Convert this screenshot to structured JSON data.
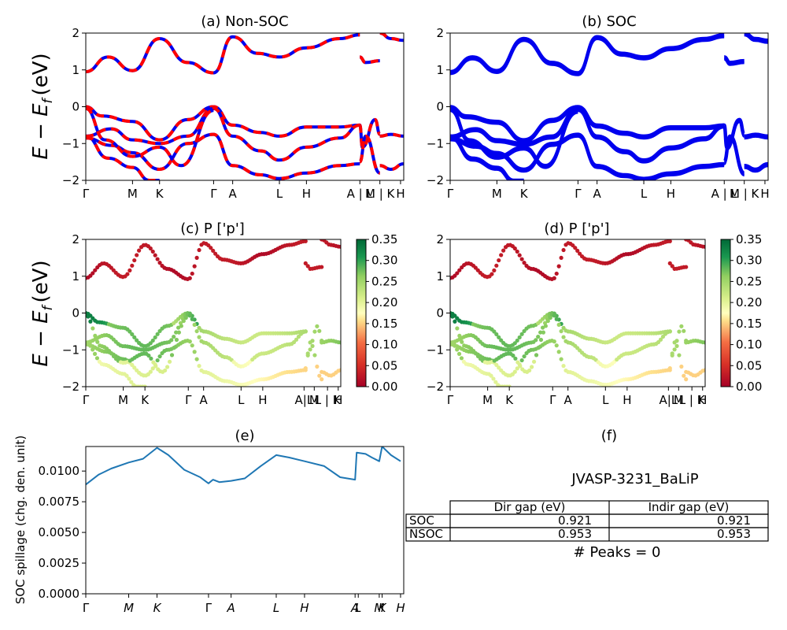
{
  "panel_titles": {
    "a": "(a) Non-SOC",
    "b": "(b) SOC",
    "c": "(c)  P ['p']",
    "d": "(d) P ['p']",
    "e": "(e)",
    "f": "(f)"
  },
  "ylabel_bands": "E − E",
  "ylabel_sub": "f",
  "ylabel_unit": "(eV)",
  "ylabel_spillage": "SOC spillage (chg. den. unit)",
  "kpath_labels_top": [
    {
      "label": "Γ",
      "k": 0.0
    },
    {
      "label": "M",
      "k": 0.147
    },
    {
      "label": "K",
      "k": 0.232
    },
    {
      "label": "Γ",
      "k": 0.402
    },
    {
      "label": "A",
      "k": 0.462
    },
    {
      "label": "L",
      "k": 0.609
    },
    {
      "label": "H",
      "k": 0.694
    },
    {
      "label": "A | L",
      "k": 0.862
    },
    {
      "label": "M | K",
      "k": 0.925
    },
    {
      "label": "H",
      "k": 0.99
    }
  ],
  "kpath_labels_mid": [
    {
      "label": "Γ",
      "k": 0.0
    },
    {
      "label": "M",
      "k": 0.147
    },
    {
      "label": "K",
      "k": 0.232
    },
    {
      "label": "Γ",
      "k": 0.402
    },
    {
      "label": "A",
      "k": 0.462
    },
    {
      "label": "L",
      "k": 0.609
    },
    {
      "label": "H",
      "k": 0.694
    },
    {
      "label": "A|L",
      "k": 0.856
    },
    {
      "label": "M",
      "k": 0.896
    },
    {
      "label": "L | K",
      "k": 0.948
    },
    {
      "label": "H",
      "k": 0.99
    }
  ],
  "kpath_labels_e": [
    {
      "label": "Γ",
      "k": 0.0
    },
    {
      "label": "M",
      "k": 0.135
    },
    {
      "label": "K",
      "k": 0.224
    },
    {
      "label": "Γ",
      "k": 0.386
    },
    {
      "label": "A",
      "k": 0.457
    },
    {
      "label": "L",
      "k": 0.599
    },
    {
      "label": "H",
      "k": 0.688
    },
    {
      "label": "A",
      "k": 0.847
    },
    {
      "label": "L",
      "k": 0.857
    },
    {
      "label": "M",
      "k": 0.923
    },
    {
      "label": "K",
      "k": 0.932
    },
    {
      "label": "H",
      "k": 0.99
    }
  ],
  "band_yticks": [
    "2",
    "1",
    "0",
    "−1",
    "−2"
  ],
  "colorbar_ticks": [
    "0.35",
    "0.30",
    "0.25",
    "0.20",
    "0.15",
    "0.10",
    "0.05",
    "0.00"
  ],
  "spillage_yticks": [
    "0.0100",
    "0.0075",
    "0.0050",
    "0.0025",
    "0.0000"
  ],
  "colors": {
    "nonsoc_dash": "#ff0000",
    "band_blue": "#0000ee",
    "spillage_line": "#1f77b4"
  },
  "info": {
    "material": "JVASP-3231_BaLiP",
    "table": {
      "col_headers": [
        "Dir gap (eV)",
        "Indir gap (eV)"
      ],
      "rows": [
        {
          "label": "SOC",
          "dir": "0.921",
          "indir": "0.921"
        },
        {
          "label": "NSOC",
          "dir": "0.953",
          "indir": "0.953"
        }
      ]
    },
    "peaks": "# Peaks = 0"
  },
  "chart_data": [
    {
      "type": "line",
      "title": "(a) Non-SOC",
      "ylim": [
        -2,
        2
      ],
      "xlim": [
        0,
        1
      ],
      "series": [
        {
          "x": [
            0,
            0.07,
            0.147,
            0.232,
            0.32,
            0.402,
            0.462,
            0.54,
            0.609,
            0.694,
            0.8,
            0.862
          ],
          "y": [
            0.95,
            1.35,
            0.98,
            1.85,
            1.2,
            0.92,
            1.9,
            1.45,
            1.35,
            1.6,
            1.85,
            1.95
          ]
        },
        {
          "x": [
            0,
            0.05,
            0.147,
            0.232,
            0.32,
            0.402,
            0.462,
            0.55,
            0.609,
            0.694,
            0.8,
            0.862
          ],
          "y": [
            0,
            -0.25,
            -0.4,
            -0.9,
            -0.35,
            0,
            -0.5,
            -0.7,
            -0.8,
            -0.55,
            -0.55,
            -0.5
          ]
        },
        {
          "x": [
            0,
            0.08,
            0.147,
            0.232,
            0.32,
            0.402,
            0.462,
            0.55,
            0.609,
            0.694,
            0.8,
            0.862
          ],
          "y": [
            -0.8,
            -0.6,
            -0.9,
            -1.0,
            -0.8,
            -0.05,
            -0.8,
            -1.2,
            -1.45,
            -1.1,
            -0.85,
            -0.5
          ]
        },
        {
          "x": [
            0,
            0.08,
            0.147,
            0.232,
            0.32,
            0.402,
            0.462,
            0.55,
            0.609,
            0.694,
            0.8,
            0.862
          ],
          "y": [
            -0.85,
            -1.05,
            -1.25,
            -1.7,
            -1.0,
            -0.75,
            -1.6,
            -1.85,
            -1.95,
            -1.8,
            -1.6,
            -1.55
          ]
        },
        {
          "x": [
            0,
            0.06,
            0.147,
            0.232,
            0.3,
            0.402
          ],
          "y": [
            -0.05,
            -0.9,
            -1.35,
            -1.1,
            -1.6,
            -0.1
          ]
        },
        {
          "x": [
            0,
            0.07,
            0.147,
            0.2,
            0.232
          ],
          "y": [
            -0.8,
            -1.4,
            -1.65,
            -2.0,
            -2.0
          ]
        },
        {
          "x": [
            0.862,
            0.88,
            0.925
          ],
          "y": [
            1.35,
            1.2,
            1.25
          ]
        },
        {
          "x": [
            0.862,
            0.87,
            0.91,
            0.925
          ],
          "y": [
            -0.5,
            -1.1,
            -0.35,
            -0.75
          ]
        },
        {
          "x": [
            0.862,
            0.88,
            0.925
          ],
          "y": [
            -1.5,
            -0.8,
            -1.8
          ]
        },
        {
          "x": [
            0.925,
            0.96,
            1.0
          ],
          "y": [
            -0.8,
            -0.75,
            -0.8
          ]
        },
        {
          "x": [
            0.925,
            0.96,
            1.0
          ],
          "y": [
            -1.6,
            -1.7,
            -1.55
          ]
        },
        {
          "x": [
            0.925,
            0.96,
            1.0
          ],
          "y": [
            2.0,
            1.85,
            1.8
          ]
        }
      ]
    },
    {
      "type": "line",
      "title": "(b) SOC",
      "ylim": [
        -2,
        2
      ],
      "xlim": [
        0,
        1
      ],
      "series": [
        {
          "x": [
            0,
            0.07,
            0.147,
            0.232,
            0.32,
            0.402,
            0.462,
            0.54,
            0.609,
            0.694,
            0.8,
            0.862
          ],
          "y": [
            0.95,
            1.35,
            0.98,
            1.85,
            1.2,
            0.92,
            1.9,
            1.45,
            1.35,
            1.6,
            1.85,
            1.95
          ]
        },
        {
          "x": [
            0,
            0.05,
            0.147,
            0.232,
            0.32,
            0.402,
            0.462,
            0.55,
            0.609,
            0.694,
            0.8,
            0.862
          ],
          "y": [
            0,
            -0.25,
            -0.4,
            -0.9,
            -0.35,
            0,
            -0.5,
            -0.7,
            -0.8,
            -0.55,
            -0.55,
            -0.5
          ]
        },
        {
          "x": [
            0,
            0.08,
            0.147,
            0.232,
            0.32,
            0.402,
            0.462,
            0.55,
            0.609,
            0.694,
            0.8,
            0.862
          ],
          "y": [
            -0.8,
            -0.6,
            -0.9,
            -1.0,
            -0.8,
            -0.05,
            -0.8,
            -1.2,
            -1.45,
            -1.1,
            -0.85,
            -0.5
          ]
        },
        {
          "x": [
            0,
            0.08,
            0.147,
            0.232,
            0.32,
            0.402,
            0.462,
            0.55,
            0.609,
            0.694,
            0.8,
            0.862
          ],
          "y": [
            -0.85,
            -1.05,
            -1.25,
            -1.7,
            -1.0,
            -0.75,
            -1.6,
            -1.85,
            -1.95,
            -1.8,
            -1.6,
            -1.55
          ]
        },
        {
          "x": [
            0,
            0.06,
            0.147,
            0.232,
            0.3,
            0.402
          ],
          "y": [
            -0.05,
            -0.9,
            -1.35,
            -1.1,
            -1.6,
            -0.1
          ]
        },
        {
          "x": [
            0,
            0.07,
            0.147,
            0.2,
            0.232
          ],
          "y": [
            -0.8,
            -1.4,
            -1.65,
            -2.0,
            -2.0
          ]
        },
        {
          "x": [
            0.862,
            0.88,
            0.925
          ],
          "y": [
            1.35,
            1.2,
            1.25
          ]
        },
        {
          "x": [
            0.862,
            0.87,
            0.91,
            0.925
          ],
          "y": [
            -0.5,
            -1.1,
            -0.35,
            -0.75
          ]
        },
        {
          "x": [
            0.862,
            0.88,
            0.925
          ],
          "y": [
            -1.5,
            -0.8,
            -1.8
          ]
        },
        {
          "x": [
            0.925,
            0.96,
            1.0
          ],
          "y": [
            -0.8,
            -0.75,
            -0.8
          ]
        },
        {
          "x": [
            0.925,
            0.96,
            1.0
          ],
          "y": [
            -1.6,
            -1.7,
            -1.55
          ]
        },
        {
          "x": [
            0.925,
            0.96,
            1.0
          ],
          "y": [
            2.0,
            1.85,
            1.8
          ]
        }
      ]
    },
    {
      "type": "scatter",
      "title": "(c)  P ['p']",
      "ylim": [
        -2,
        2
      ],
      "colorbar_range": [
        0,
        0.35
      ]
    },
    {
      "type": "scatter",
      "title": "(d) P ['p']",
      "ylim": [
        -2,
        2
      ],
      "colorbar_range": [
        0,
        0.35
      ]
    },
    {
      "type": "line",
      "title": "(e)",
      "ylabel": "SOC spillage (chg. den. unit)",
      "ylim": [
        0,
        0.012
      ],
      "x": [
        0,
        0.04,
        0.08,
        0.135,
        0.18,
        0.224,
        0.26,
        0.31,
        0.36,
        0.386,
        0.4,
        0.42,
        0.457,
        0.5,
        0.55,
        0.599,
        0.64,
        0.688,
        0.75,
        0.8,
        0.847,
        0.852,
        0.88,
        0.9,
        0.923,
        0.932,
        0.96,
        0.99
      ],
      "y": [
        0.0089,
        0.0097,
        0.0102,
        0.0107,
        0.011,
        0.0119,
        0.0113,
        0.0101,
        0.0095,
        0.009,
        0.0093,
        0.0091,
        0.0092,
        0.0094,
        0.0104,
        0.0113,
        0.0111,
        0.0108,
        0.0104,
        0.0095,
        0.0093,
        0.0115,
        0.0114,
        0.0111,
        0.0108,
        0.012,
        0.0113,
        0.0108
      ]
    }
  ]
}
